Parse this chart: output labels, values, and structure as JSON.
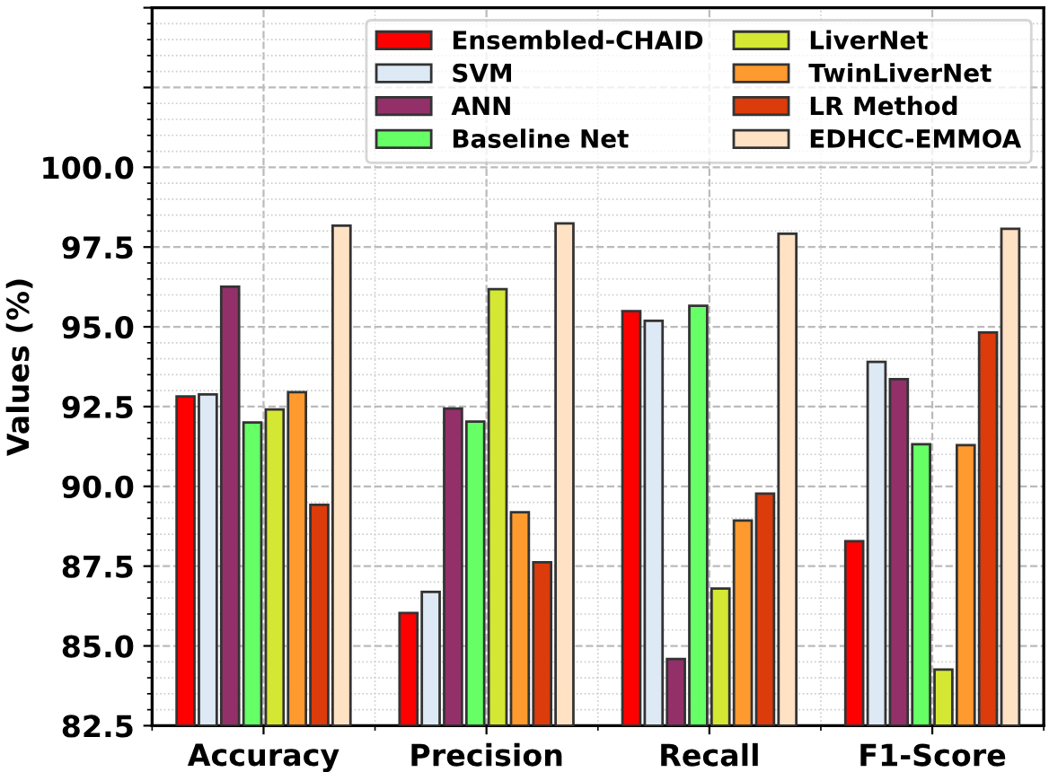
{
  "chart_data": {
    "type": "bar",
    "ylabel": "Values (%)",
    "categories": [
      "Accuracy",
      "Precision",
      "Recall",
      "F1-Score"
    ],
    "series": [
      {
        "name": "Ensembled-CHAID",
        "color": "#ff0000",
        "values": [
          92.82,
          86.03,
          95.49,
          88.28
        ]
      },
      {
        "name": "SVM",
        "color": "#dde9f4",
        "values": [
          92.88,
          86.69,
          95.19,
          93.9
        ]
      },
      {
        "name": "ANN",
        "color": "#933069",
        "values": [
          96.26,
          92.44,
          84.59,
          93.36
        ]
      },
      {
        "name": "Baseline Net",
        "color": "#66ff66",
        "values": [
          92.0,
          92.03,
          95.66,
          91.32
        ]
      },
      {
        "name": "LiverNet",
        "color": "#d4e733",
        "values": [
          92.41,
          96.18,
          86.8,
          84.26
        ]
      },
      {
        "name": "TwinLiverNet",
        "color": "#ff9a2e",
        "values": [
          92.95,
          89.19,
          88.93,
          91.29
        ]
      },
      {
        "name": "LR Method",
        "color": "#dc3b0b",
        "values": [
          89.42,
          87.62,
          89.77,
          94.82
        ]
      },
      {
        "name": "EDHCC-EMMOA",
        "color": "#ffe1c4",
        "values": [
          98.17,
          98.24,
          97.92,
          98.07
        ]
      }
    ],
    "ylim": [
      82.5,
      105
    ],
    "yticks": [
      82.5,
      {
        "value": 85,
        "label": "85.0"
      },
      87.5,
      {
        "value": 90,
        "label": "90.0"
      },
      92.5,
      {
        "value": 95,
        "label": "95.0"
      },
      97.5,
      {
        "value": 100,
        "label": "100.0"
      },
      {
        "value": 102.5,
        "label": null
      },
      {
        "value": 105,
        "label": null
      }
    ],
    "grid": true,
    "legend": "top right"
  }
}
